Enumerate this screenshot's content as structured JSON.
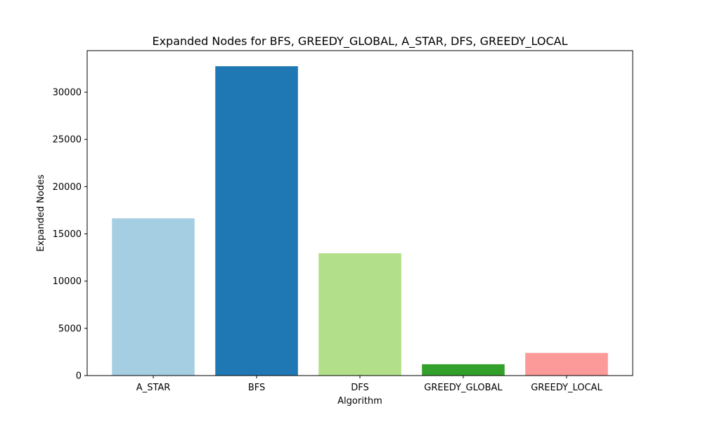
{
  "chart_data": {
    "type": "bar",
    "title": "Expanded Nodes for BFS, GREEDY_GLOBAL, A_STAR, DFS, GREEDY_LOCAL",
    "xlabel": "Algorithm",
    "ylabel": "Expanded Nodes",
    "categories": [
      "A_STAR",
      "BFS",
      "DFS",
      "GREEDY_GLOBAL",
      "GREEDY_LOCAL"
    ],
    "values": [
      16650,
      32750,
      12950,
      1200,
      2400
    ],
    "colors": [
      "#a6cee3",
      "#1f78b4",
      "#b2df8a",
      "#33a02c",
      "#fb9a99"
    ],
    "ylim": [
      0,
      34400
    ],
    "yticks": [
      0,
      5000,
      10000,
      15000,
      20000,
      25000,
      30000
    ],
    "grid": false,
    "legend": "none"
  }
}
